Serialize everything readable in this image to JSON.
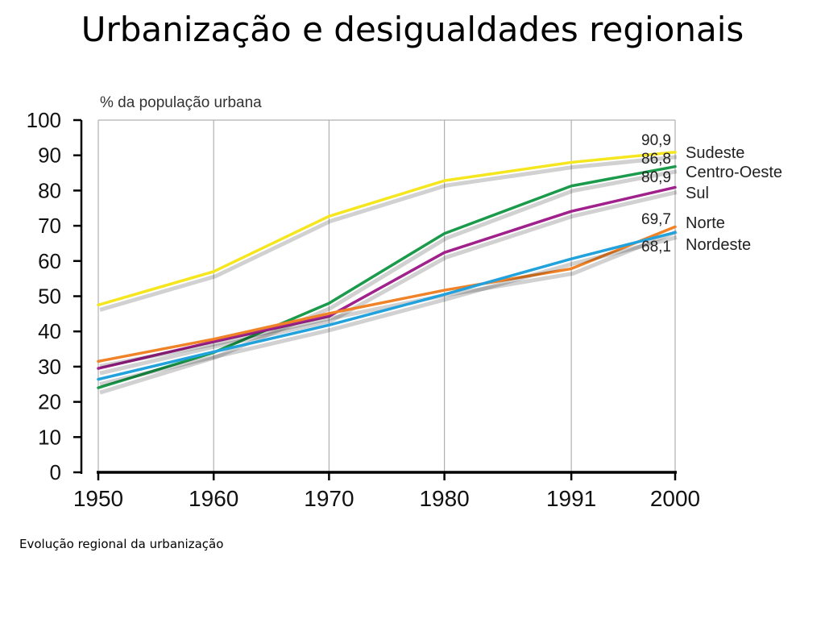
{
  "slide": {
    "title": "Urbanização e desigualdades regionais",
    "caption": "Evolução regional da urbanização"
  },
  "chart_data": {
    "type": "line",
    "title": "",
    "ylabel": "% da população urbana",
    "xlabel": "",
    "x": [
      1950,
      1960,
      1970,
      1980,
      1991,
      2000
    ],
    "x_tick_labels": [
      "1950",
      "1960",
      "1970",
      "1980",
      "1991",
      "2000"
    ],
    "y_ticks": [
      0,
      10,
      20,
      30,
      40,
      50,
      60,
      70,
      80,
      90,
      100
    ],
    "y_tick_labels": [
      "0",
      "10",
      "20",
      "30",
      "40",
      "50",
      "60",
      "70",
      "80",
      "90",
      "100"
    ],
    "xlim": [
      1950,
      2000
    ],
    "ylim": [
      0,
      100
    ],
    "grid": "vertical",
    "legend_placement": "right",
    "series": [
      {
        "name": "Sudeste",
        "color": "#f5e61e",
        "values": [
          47.5,
          57.0,
          72.7,
          82.8,
          88.0,
          90.9
        ],
        "end_label": "90,9"
      },
      {
        "name": "Centro-Oeste",
        "color": "#1a9a4a",
        "values": [
          24.0,
          34.0,
          48.0,
          67.8,
          81.3,
          86.8
        ],
        "end_label": "86,8"
      },
      {
        "name": "Sul",
        "color": "#a0208c",
        "values": [
          29.5,
          37.1,
          44.3,
          62.4,
          74.1,
          80.9
        ],
        "end_label": "80,9"
      },
      {
        "name": "Norte",
        "color": "#f08228",
        "values": [
          31.5,
          37.8,
          45.1,
          51.7,
          57.8,
          69.7
        ],
        "end_label": "69,7"
      },
      {
        "name": "Nordeste",
        "color": "#22a2dc",
        "values": [
          26.4,
          34.2,
          41.8,
          50.5,
          60.6,
          68.1
        ],
        "end_label": "68,1"
      }
    ]
  }
}
